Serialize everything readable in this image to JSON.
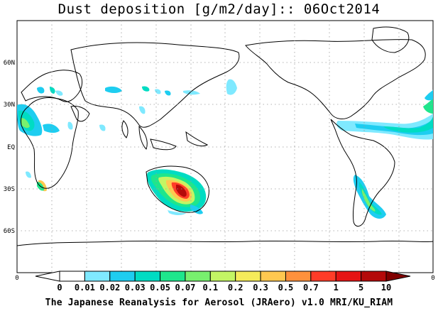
{
  "title": "Dust deposition [g/m2/day]:: 06Oct2014",
  "footer": "The Japanese Reanalysis for Aerosol (JRAero) v1.0 MRI/KU_RIAM",
  "latitude_labels": [
    "60N",
    "30N",
    "EQ",
    "30S",
    "60S"
  ],
  "corner_labels": {
    "left": "0",
    "right": "0"
  },
  "colorbar": {
    "labels": [
      "0",
      "0.01",
      "0.02",
      "0.03",
      "0.05",
      "0.07",
      "0.1",
      "0.2",
      "0.3",
      "0.5",
      "0.7",
      "1",
      "5",
      "10"
    ],
    "colors": [
      "#ffffff",
      "#ffffff",
      "#7fe9ff",
      "#1ecdf0",
      "#00dcc3",
      "#1ee68c",
      "#78f06e",
      "#c3f564",
      "#f5eb5a",
      "#ffc850",
      "#ff913c",
      "#ff3c28",
      "#e61414",
      "#b40a0a",
      "#800000"
    ]
  }
}
